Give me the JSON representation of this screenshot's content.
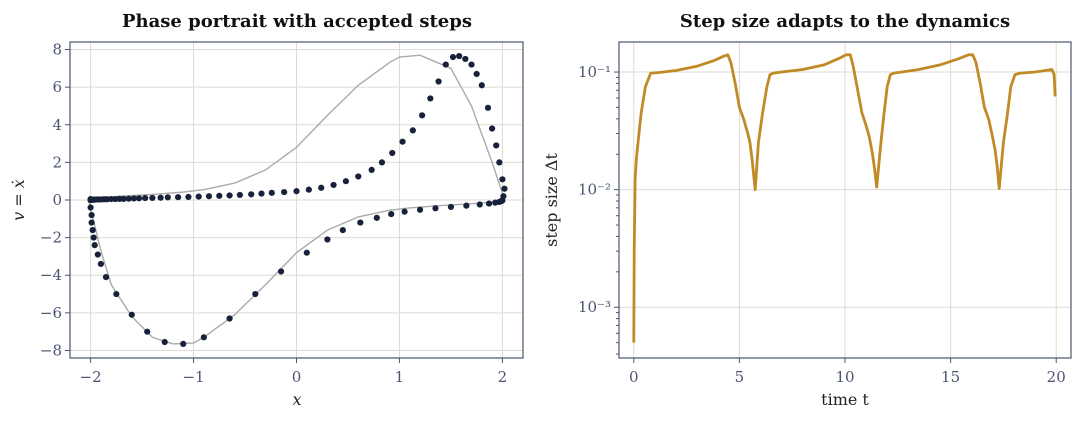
{
  "chart_data": [
    {
      "type": "scatter",
      "title": "Phase portrait with accepted steps",
      "xlabel": "x",
      "ylabel": "v = ẋ",
      "xlim": [
        -2.2,
        2.2
      ],
      "ylim": [
        -8.4,
        8.4
      ],
      "xticks": [
        -2,
        -1,
        0,
        1,
        2
      ],
      "yticks": [
        -8,
        -6,
        -4,
        -2,
        0,
        2,
        4,
        6,
        8
      ],
      "grid": true,
      "colors": {
        "curve": "#aaaaaa",
        "points": "#17213a"
      },
      "curve": {
        "x": [
          -2.02,
          -1.9,
          -1.8,
          -1.6,
          -1.4,
          -1.2,
          -1.0,
          -0.9,
          -0.6,
          -0.3,
          0.0,
          0.3,
          0.6,
          0.9,
          1.1,
          1.4,
          1.7,
          1.9,
          2.02,
          2.01,
          1.9,
          1.7,
          1.5,
          1.2,
          1.0,
          0.9,
          0.6,
          0.3,
          0.0,
          -0.3,
          -0.6,
          -0.9,
          -1.1,
          -1.4,
          -1.7,
          -1.9,
          -2.02
        ],
        "y": [
          0.0,
          -2.7,
          -4.5,
          -6.2,
          -7.3,
          -7.65,
          -7.6,
          -7.3,
          -6.1,
          -4.5,
          -2.8,
          -1.6,
          -0.9,
          -0.55,
          -0.42,
          -0.3,
          -0.2,
          -0.1,
          0.0,
          0.2,
          2.0,
          5.0,
          7.0,
          7.7,
          7.6,
          7.3,
          6.1,
          4.5,
          2.8,
          1.6,
          0.9,
          0.55,
          0.42,
          0.3,
          0.2,
          0.1,
          0.0
        ]
      },
      "points": {
        "x": [
          -2.0,
          -2.0,
          -1.99,
          -1.99,
          -1.98,
          -1.97,
          -1.96,
          -1.93,
          -1.9,
          -1.85,
          -1.75,
          -1.6,
          -1.45,
          -1.28,
          -1.1,
          -0.9,
          -0.65,
          -0.4,
          -0.15,
          0.1,
          0.3,
          0.45,
          0.62,
          0.78,
          0.92,
          1.05,
          1.2,
          1.35,
          1.5,
          1.65,
          1.78,
          1.87,
          1.93,
          1.97,
          1.99,
          2.0,
          2.01,
          2.02,
          2.0,
          1.97,
          1.94,
          1.9,
          1.86,
          1.8,
          1.75,
          1.7,
          1.64,
          1.58,
          1.52,
          1.45,
          1.38,
          1.3,
          1.22,
          1.13,
          1.03,
          0.93,
          0.83,
          0.73,
          0.6,
          0.48,
          0.36,
          0.24,
          0.12,
          0.0,
          -0.12,
          -0.24,
          -0.34,
          -0.44,
          -0.55,
          -0.65,
          -0.75,
          -0.85,
          -0.95,
          -1.05,
          -1.15,
          -1.25,
          -1.32,
          -1.4,
          -1.47,
          -1.53,
          -1.58,
          -1.63,
          -1.68,
          -1.72,
          -1.76,
          -1.8,
          -1.84,
          -1.87,
          -1.9,
          -1.92,
          -1.94,
          -1.96,
          -1.97,
          -1.98,
          -1.99,
          -2.0,
          -2.0,
          -2.0
        ],
        "y": [
          0.0,
          -0.4,
          -0.8,
          -1.2,
          -1.6,
          -2.0,
          -2.4,
          -2.9,
          -3.4,
          -4.1,
          -5.0,
          -6.1,
          -7.0,
          -7.55,
          -7.65,
          -7.3,
          -6.3,
          -5.0,
          -3.8,
          -2.8,
          -2.1,
          -1.6,
          -1.2,
          -0.95,
          -0.75,
          -0.62,
          -0.52,
          -0.44,
          -0.37,
          -0.3,
          -0.24,
          -0.19,
          -0.14,
          -0.1,
          -0.06,
          -0.02,
          0.2,
          0.6,
          1.1,
          2.0,
          2.9,
          3.8,
          4.9,
          6.1,
          6.7,
          7.2,
          7.5,
          7.65,
          7.6,
          7.2,
          6.3,
          5.4,
          4.5,
          3.7,
          3.1,
          2.5,
          2.0,
          1.6,
          1.25,
          1.0,
          0.8,
          0.65,
          0.55,
          0.47,
          0.42,
          0.38,
          0.34,
          0.3,
          0.27,
          0.24,
          0.22,
          0.2,
          0.18,
          0.16,
          0.15,
          0.14,
          0.12,
          0.11,
          0.1,
          0.09,
          0.08,
          0.07,
          0.06,
          0.06,
          0.05,
          0.05,
          0.04,
          0.04,
          0.03,
          0.03,
          0.03,
          0.02,
          0.02,
          0.02,
          0.01,
          0.01,
          0.0,
          0.05
        ]
      }
    },
    {
      "type": "line",
      "title": "Step size adapts to the dynamics",
      "xlabel": "time  t",
      "ylabel": "step size  Δt",
      "xlim": [
        -0.7,
        20.7
      ],
      "ylim": [
        0.00037,
        0.18
      ],
      "yscale": "log",
      "xticks": [
        0,
        5,
        10,
        15,
        20
      ],
      "yticks": [
        0.001,
        0.01,
        0.1
      ],
      "ytick_labels": [
        "10⁻³",
        "10⁻²",
        "10⁻¹"
      ],
      "grid": true,
      "colors": {
        "line": "#c08a24"
      },
      "series": [
        {
          "x": [
            0.0,
            0.02,
            0.06,
            0.12,
            0.2,
            0.35,
            0.55,
            0.8,
            1.2,
            2.0,
            3.0,
            3.8,
            4.2,
            4.45,
            4.6,
            4.8,
            5.0,
            5.2,
            5.4,
            5.5,
            5.6,
            5.75,
            5.9,
            6.1,
            6.3,
            6.45,
            6.6,
            7.0,
            8.0,
            9.0,
            9.7,
            10.05,
            10.25,
            10.4,
            10.6,
            10.8,
            11.0,
            11.15,
            11.3,
            11.4,
            11.5,
            11.7,
            11.85,
            12.0,
            12.15,
            12.3,
            12.7,
            13.5,
            14.5,
            15.4,
            15.85,
            16.05,
            16.2,
            16.4,
            16.6,
            16.8,
            16.95,
            17.1,
            17.2,
            17.3,
            17.5,
            17.7,
            17.85,
            18.05,
            18.3,
            19.0,
            19.8,
            19.9,
            19.95
          ],
          "y": [
            0.0005,
            0.003,
            0.012,
            0.018,
            0.025,
            0.045,
            0.075,
            0.098,
            0.099,
            0.103,
            0.112,
            0.125,
            0.135,
            0.14,
            0.12,
            0.08,
            0.05,
            0.04,
            0.03,
            0.025,
            0.018,
            0.01,
            0.025,
            0.045,
            0.075,
            0.095,
            0.098,
            0.1,
            0.105,
            0.115,
            0.13,
            0.14,
            0.14,
            0.11,
            0.07,
            0.045,
            0.035,
            0.028,
            0.02,
            0.015,
            0.0105,
            0.025,
            0.045,
            0.075,
            0.095,
            0.098,
            0.1,
            0.105,
            0.115,
            0.13,
            0.14,
            0.14,
            0.12,
            0.08,
            0.05,
            0.04,
            0.03,
            0.022,
            0.016,
            0.0102,
            0.025,
            0.045,
            0.075,
            0.095,
            0.098,
            0.1,
            0.105,
            0.095,
            0.062
          ]
        }
      ]
    }
  ]
}
